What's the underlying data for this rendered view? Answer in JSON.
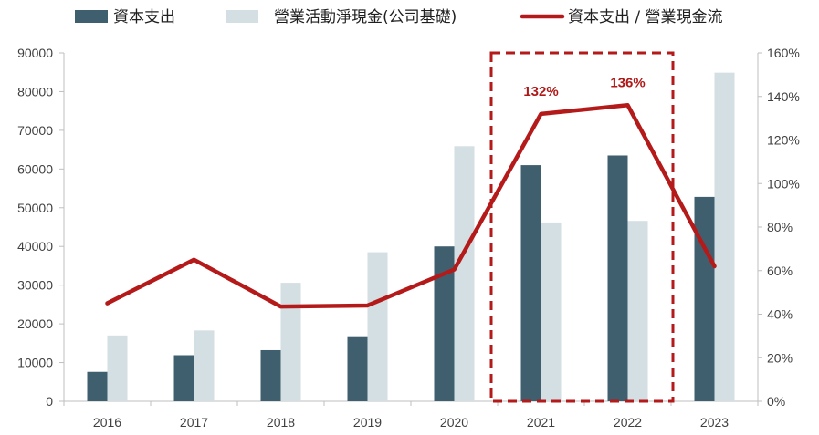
{
  "chart_data": {
    "type": "bar",
    "categories": [
      "2016",
      "2017",
      "2018",
      "2019",
      "2020",
      "2021",
      "2022",
      "2023"
    ],
    "series": [
      {
        "name": "資本支出",
        "type": "bar",
        "axis": "left",
        "color": "#3f5f6f",
        "values": [
          7600,
          11900,
          13200,
          16800,
          40000,
          61000,
          63500,
          52800
        ]
      },
      {
        "name": "營業活動淨現金(公司基礎)",
        "type": "bar",
        "axis": "left",
        "color": "#d3dfe3",
        "values": [
          17000,
          18300,
          30600,
          38500,
          65900,
          46200,
          46600,
          84900
        ]
      },
      {
        "name": "資本支出 / 營業現金流",
        "type": "line",
        "axis": "right",
        "color": "#b51a1a",
        "values": [
          0.45,
          0.65,
          0.435,
          0.44,
          0.605,
          1.32,
          1.36,
          0.62
        ]
      }
    ],
    "y_left": {
      "min": 0,
      "max": 90000,
      "ticks": [
        0,
        10000,
        20000,
        30000,
        40000,
        50000,
        60000,
        70000,
        80000,
        90000
      ],
      "tick_labels": [
        "0",
        "10000",
        "20000",
        "30000",
        "40000",
        "50000",
        "60000",
        "70000",
        "80000",
        "90000"
      ]
    },
    "y_right": {
      "min": 0,
      "max": 1.6,
      "ticks": [
        0,
        0.2,
        0.4,
        0.6,
        0.8,
        1.0,
        1.2,
        1.4,
        1.6
      ],
      "tick_labels": [
        "0%",
        "20%",
        "40%",
        "60%",
        "80%",
        "100%",
        "120%",
        "140%",
        "160%"
      ]
    },
    "annotations": [
      {
        "category": "2021",
        "label": "132%"
      },
      {
        "category": "2022",
        "label": "136%"
      }
    ],
    "highlight": {
      "from": "2021",
      "to": "2022",
      "style": "dashed",
      "color": "#b51a1a"
    },
    "legend_position": "top",
    "grid": false
  }
}
